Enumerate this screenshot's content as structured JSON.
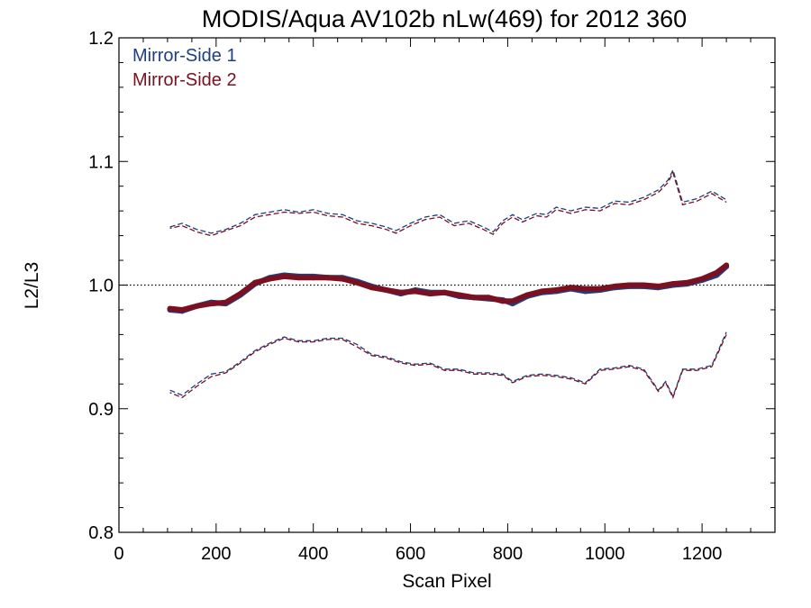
{
  "chart_data": {
    "type": "line",
    "title": "MODIS/Aqua AV102b nLw(469) for 2012 360",
    "xlabel": "Scan Pixel",
    "ylabel": "L2/L3",
    "xlim": [
      0,
      1350
    ],
    "ylim": [
      0.8,
      1.2
    ],
    "x_ticks": [
      0,
      200,
      400,
      600,
      800,
      1000,
      1200
    ],
    "x_tick_labels": [
      "0",
      "200",
      "400",
      "600",
      "800",
      "1000",
      "1200"
    ],
    "y_ticks": [
      0.8,
      0.9,
      1.0,
      1.1,
      1.2
    ],
    "y_tick_labels": [
      "0.8",
      "0.9",
      "1.0",
      "1.1",
      "1.2"
    ],
    "reference_line": 1.0,
    "grid": false,
    "legend_position": "top-left",
    "colors": {
      "mirror_side_1": "#1f3f7f",
      "mirror_side_2": "#7a1020",
      "axis": "#000000"
    },
    "series": [
      {
        "name": "Mirror-Side 1",
        "color": "#1f3f7f",
        "mean": {
          "x": [
            105,
            130,
            160,
            190,
            220,
            250,
            280,
            310,
            340,
            370,
            400,
            430,
            460,
            490,
            520,
            550,
            580,
            610,
            640,
            670,
            700,
            730,
            760,
            790,
            810,
            840,
            870,
            900,
            930,
            960,
            990,
            1020,
            1050,
            1080,
            1110,
            1140,
            1170,
            1200,
            1230,
            1250
          ],
          "y": [
            0.98,
            0.979,
            0.983,
            0.986,
            0.985,
            0.992,
            1.001,
            1.006,
            1.008,
            1.007,
            1.007,
            1.006,
            1.006,
            1.003,
            0.999,
            0.996,
            0.993,
            0.996,
            0.994,
            0.994,
            0.991,
            0.99,
            0.989,
            0.988,
            0.985,
            0.991,
            0.994,
            0.995,
            0.997,
            0.995,
            0.996,
            0.998,
            0.999,
            0.999,
            0.998,
            1.0,
            1.001,
            1.004,
            1.008,
            1.015
          ]
        },
        "upper": {
          "x": [
            105,
            130,
            160,
            190,
            220,
            250,
            280,
            310,
            340,
            370,
            400,
            430,
            460,
            490,
            520,
            550,
            570,
            600,
            630,
            660,
            690,
            720,
            750,
            770,
            790,
            810,
            830,
            860,
            880,
            900,
            930,
            960,
            990,
            1020,
            1050,
            1080,
            1110,
            1130,
            1140,
            1160,
            1190,
            1220,
            1250
          ],
          "y": [
            1.047,
            1.05,
            1.045,
            1.042,
            1.045,
            1.05,
            1.057,
            1.059,
            1.061,
            1.059,
            1.061,
            1.058,
            1.057,
            1.052,
            1.05,
            1.047,
            1.044,
            1.05,
            1.055,
            1.057,
            1.05,
            1.052,
            1.047,
            1.043,
            1.052,
            1.057,
            1.053,
            1.058,
            1.057,
            1.063,
            1.06,
            1.063,
            1.062,
            1.068,
            1.067,
            1.071,
            1.077,
            1.085,
            1.093,
            1.067,
            1.07,
            1.076,
            1.069
          ]
        },
        "lower": {
          "x": [
            105,
            130,
            160,
            190,
            220,
            250,
            280,
            310,
            340,
            370,
            400,
            430,
            460,
            490,
            520,
            550,
            580,
            610,
            640,
            670,
            700,
            730,
            760,
            790,
            810,
            840,
            870,
            900,
            930,
            960,
            990,
            1020,
            1050,
            1080,
            1110,
            1125,
            1140,
            1160,
            1190,
            1220,
            1250
          ],
          "y": [
            0.915,
            0.911,
            0.92,
            0.928,
            0.93,
            0.938,
            0.947,
            0.953,
            0.958,
            0.955,
            0.955,
            0.957,
            0.957,
            0.952,
            0.944,
            0.942,
            0.938,
            0.936,
            0.937,
            0.932,
            0.932,
            0.929,
            0.929,
            0.928,
            0.922,
            0.927,
            0.928,
            0.927,
            0.925,
            0.921,
            0.932,
            0.933,
            0.935,
            0.932,
            0.915,
            0.922,
            0.91,
            0.932,
            0.932,
            0.935,
            0.962
          ]
        }
      },
      {
        "name": "Mirror-Side 2",
        "color": "#7a1020",
        "mean": {
          "x": [
            105,
            130,
            160,
            190,
            220,
            250,
            280,
            310,
            340,
            370,
            400,
            430,
            460,
            490,
            520,
            550,
            580,
            610,
            640,
            670,
            700,
            730,
            760,
            790,
            810,
            840,
            870,
            900,
            930,
            960,
            990,
            1020,
            1050,
            1080,
            1110,
            1140,
            1170,
            1200,
            1230,
            1250
          ],
          "y": [
            0.981,
            0.98,
            0.983,
            0.985,
            0.986,
            0.993,
            1.002,
            1.005,
            1.007,
            1.006,
            1.006,
            1.006,
            1.005,
            1.002,
            0.998,
            0.996,
            0.994,
            0.995,
            0.993,
            0.994,
            0.992,
            0.99,
            0.99,
            0.987,
            0.987,
            0.992,
            0.995,
            0.996,
            0.998,
            0.997,
            0.997,
            0.999,
            1.0,
            1.0,
            0.999,
            1.001,
            1.002,
            1.005,
            1.01,
            1.016
          ]
        },
        "upper": {
          "x": [
            105,
            130,
            160,
            190,
            220,
            250,
            280,
            310,
            340,
            370,
            400,
            430,
            460,
            490,
            520,
            550,
            570,
            600,
            630,
            660,
            690,
            720,
            750,
            770,
            790,
            810,
            830,
            860,
            880,
            900,
            930,
            960,
            990,
            1020,
            1050,
            1080,
            1110,
            1130,
            1140,
            1160,
            1190,
            1220,
            1250
          ],
          "y": [
            1.046,
            1.048,
            1.043,
            1.04,
            1.044,
            1.048,
            1.055,
            1.057,
            1.059,
            1.058,
            1.059,
            1.056,
            1.055,
            1.05,
            1.048,
            1.045,
            1.042,
            1.048,
            1.053,
            1.055,
            1.048,
            1.05,
            1.045,
            1.041,
            1.05,
            1.055,
            1.051,
            1.056,
            1.055,
            1.061,
            1.058,
            1.061,
            1.06,
            1.066,
            1.065,
            1.069,
            1.075,
            1.083,
            1.091,
            1.065,
            1.068,
            1.074,
            1.067
          ]
        },
        "lower": {
          "x": [
            105,
            130,
            160,
            190,
            220,
            250,
            280,
            310,
            340,
            370,
            400,
            430,
            460,
            490,
            520,
            550,
            580,
            610,
            640,
            670,
            700,
            730,
            760,
            790,
            810,
            840,
            870,
            900,
            930,
            960,
            990,
            1020,
            1050,
            1080,
            1110,
            1125,
            1140,
            1160,
            1190,
            1220,
            1250
          ],
          "y": [
            0.913,
            0.909,
            0.918,
            0.926,
            0.929,
            0.937,
            0.946,
            0.952,
            0.957,
            0.954,
            0.954,
            0.956,
            0.956,
            0.95,
            0.943,
            0.941,
            0.937,
            0.935,
            0.936,
            0.931,
            0.931,
            0.928,
            0.928,
            0.927,
            0.921,
            0.926,
            0.927,
            0.926,
            0.924,
            0.92,
            0.931,
            0.932,
            0.934,
            0.931,
            0.914,
            0.921,
            0.909,
            0.931,
            0.931,
            0.934,
            0.96
          ]
        }
      }
    ]
  }
}
